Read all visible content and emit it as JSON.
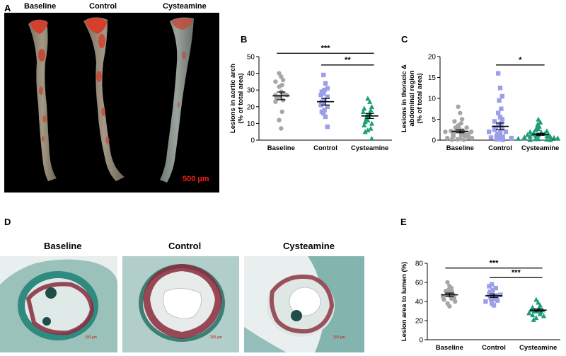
{
  "panelA": {
    "letter": "A",
    "labels": [
      "Baseline",
      "Control",
      "Cysteamine"
    ],
    "scale_bar": "500 µm",
    "colors": {
      "background": "#000000",
      "lesion": "#e0442c",
      "tissue": "#8d8270",
      "scale_text": "#ff1a1a"
    }
  },
  "panelD": {
    "letter": "D",
    "labels": [
      "Baseline",
      "Control",
      "Cysteamine"
    ],
    "scale_bar": "200 µm",
    "colors": {
      "stain_tissue": "#2f8a7f",
      "stain_lesion": "#8a2a3c",
      "background": "#eef3f2"
    }
  },
  "chart_data": [
    {
      "panel": "B",
      "type": "scatter",
      "ylabel": "Lesions in aortic arch",
      "ylabel2": "(% of total area)",
      "categories": [
        "Baseline",
        "Control",
        "Cysteamine"
      ],
      "ylim": [
        0,
        50
      ],
      "yticks": [
        "0",
        "10",
        "20",
        "30",
        "40",
        "50"
      ],
      "series": [
        {
          "category": "Baseline",
          "marker": "circle",
          "color": "#a6a6a6",
          "mean": 26.5,
          "sem": 2.3,
          "values": [
            40,
            38,
            36,
            35,
            33,
            32,
            29,
            28,
            27,
            27,
            26,
            25,
            24,
            23,
            17,
            12,
            7
          ]
        },
        {
          "category": "Control",
          "marker": "square",
          "color": "#9b9ee8",
          "mean": 23,
          "sem": 2,
          "values": [
            39,
            34,
            31,
            30,
            29,
            28,
            27,
            26,
            24,
            23,
            22,
            21,
            20,
            18,
            17,
            16,
            14,
            8
          ]
        },
        {
          "category": "Cysteamine",
          "marker": "triangle",
          "color": "#1e9e77",
          "mean": 14.5,
          "sem": 1.5,
          "values": [
            25,
            23,
            20,
            19,
            18,
            17,
            16,
            15,
            14,
            13,
            12,
            11,
            10,
            9,
            7,
            6,
            5,
            1
          ]
        }
      ],
      "significance": [
        {
          "from": "Baseline",
          "to": "Cysteamine",
          "label": "***",
          "y": 52
        },
        {
          "from": "Control",
          "to": "Cysteamine",
          "label": "**",
          "y": 45
        }
      ]
    },
    {
      "panel": "C",
      "type": "scatter",
      "ylabel": "Lesions in thoracic &",
      "ylabel2": "abdominal region",
      "ylabel3": "(% of total area)",
      "categories": [
        "Baseline",
        "Control",
        "Cysteamine"
      ],
      "ylim": [
        0,
        20
      ],
      "yticks": [
        "0",
        "5",
        "10",
        "15",
        "20"
      ],
      "series": [
        {
          "category": "Baseline",
          "marker": "circle",
          "color": "#a6a6a6",
          "mean": 2.1,
          "sem": 0.35,
          "values": [
            8,
            6.5,
            5,
            4.5,
            4,
            3.5,
            3,
            3,
            2.8,
            2.5,
            2.3,
            2.2,
            2,
            2,
            1.8,
            1.7,
            1.5,
            1.5,
            1.3,
            1.2,
            1,
            1,
            0.8,
            0.7,
            0.5,
            0.5,
            0.3,
            0.2,
            0.1,
            0.1
          ]
        },
        {
          "category": "Control",
          "marker": "square",
          "color": "#9b9ee8",
          "mean": 3.3,
          "sem": 0.8,
          "values": [
            16,
            12.5,
            10.5,
            9.5,
            7.5,
            6.5,
            5.5,
            5,
            4.5,
            4,
            3.5,
            3,
            2.8,
            2.5,
            2,
            2,
            1.8,
            1.5,
            1.2,
            1,
            0.8,
            0.6,
            0.5,
            0.3,
            0.2,
            0.1
          ]
        },
        {
          "category": "Cysteamine",
          "marker": "triangle",
          "color": "#1e9e77",
          "mean": 1.4,
          "sem": 0.25,
          "values": [
            5,
            4.3,
            3.8,
            3.3,
            3,
            2.7,
            2.5,
            2.2,
            2,
            1.9,
            1.8,
            1.6,
            1.5,
            1.4,
            1.3,
            1.2,
            1.1,
            1,
            0.9,
            0.8,
            0.7,
            0.6,
            0.5,
            0.5,
            0.4,
            0.3,
            0.3,
            0.2,
            0.1,
            0.1
          ]
        }
      ],
      "significance": [
        {
          "from": "Control",
          "to": "Cysteamine",
          "label": "*",
          "y": 18
        }
      ]
    },
    {
      "panel": "E",
      "type": "scatter",
      "ylabel": "Lesion area to lumen (%)",
      "categories": [
        "Baseline",
        "Control",
        "Cysteamine"
      ],
      "ylim": [
        0,
        80
      ],
      "yticks": [
        "0",
        "20",
        "40",
        "60",
        "80"
      ],
      "series": [
        {
          "category": "Baseline",
          "marker": "circle",
          "color": "#a6a6a6",
          "mean": 47,
          "sem": 1.8,
          "values": [
            60,
            56,
            54,
            52,
            51,
            50,
            49,
            48,
            47,
            46,
            45,
            44,
            43,
            42,
            40,
            38,
            35
          ]
        },
        {
          "category": "Control",
          "marker": "square",
          "color": "#9b9ee8",
          "mean": 46,
          "sem": 1.8,
          "values": [
            58,
            56,
            54,
            52,
            50,
            49,
            48,
            47,
            46,
            45,
            44,
            43,
            42,
            41,
            40,
            38,
            36
          ]
        },
        {
          "category": "Cysteamine",
          "marker": "triangle",
          "color": "#1e9e77",
          "mean": 31,
          "sem": 1.3,
          "values": [
            42,
            39,
            36,
            34,
            33,
            32,
            31,
            31,
            30,
            30,
            29,
            28,
            27,
            26,
            25,
            23,
            21
          ]
        }
      ],
      "significance": [
        {
          "from": "Baseline",
          "to": "Cysteamine",
          "label": "***",
          "y": 75
        },
        {
          "from": "Control",
          "to": "Cysteamine",
          "label": "***",
          "y": 65
        }
      ]
    }
  ]
}
